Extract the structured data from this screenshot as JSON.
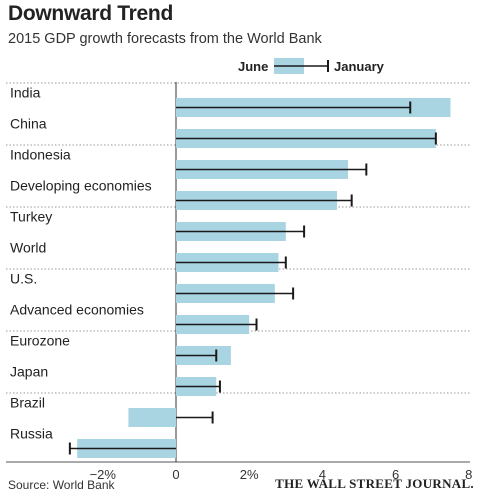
{
  "header": {
    "title": "Downward Trend",
    "subtitle": "2015 GDP growth forecasts from the World Bank"
  },
  "footer": {
    "source": "Source: World Bank",
    "publisher": "THE WALL STREET JOURNAL."
  },
  "colors": {
    "bar": "#a9d4e2",
    "whisker": "#1a1a1a",
    "grid": "#9a9a9a"
  },
  "chart_data": {
    "type": "bar",
    "orientation": "horizontal",
    "title": "Downward Trend",
    "subtitle": "2015 GDP growth forecasts from the World Bank",
    "categories": [
      "India",
      "China",
      "Indonesia",
      "Developing economies",
      "Turkey",
      "World",
      "U.S.",
      "Advanced economies",
      "Eurozone",
      "Japan",
      "Brazil",
      "Russia"
    ],
    "series": [
      {
        "name": "June",
        "values": [
          7.5,
          7.1,
          4.7,
          4.4,
          3.0,
          2.8,
          2.7,
          2.0,
          1.5,
          1.1,
          -1.3,
          -2.7
        ]
      },
      {
        "name": "January",
        "values": [
          6.4,
          7.1,
          5.2,
          4.8,
          3.5,
          3.0,
          3.2,
          2.2,
          1.1,
          1.2,
          1.0,
          -2.9
        ]
      }
    ],
    "xlim": [
      -2.7,
      8.0
    ],
    "xticks": [
      -2,
      0,
      2,
      4,
      6,
      8
    ],
    "xtick_labels": [
      "−2%",
      "0",
      "2%",
      "4",
      "6",
      "8"
    ],
    "legend_position": "top-right",
    "grid": "dotted separators between pairs of categories"
  }
}
